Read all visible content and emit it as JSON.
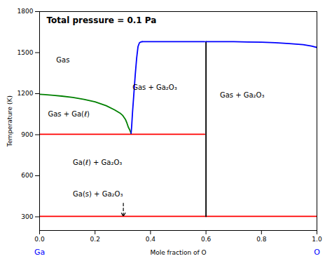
{
  "chart_data": {
    "type": "line",
    "title": "Total pressure = 0.1 Pa",
    "xlabel": "Mole fraction of O",
    "ylabel": "Temperature (K)",
    "xlim": [
      0.0,
      1.0
    ],
    "ylim": [
      200,
      1800
    ],
    "xticks": [
      {
        "value": 0.0,
        "label": "0.0"
      },
      0.2,
      0.4,
      0.6,
      0.8,
      {
        "value": 1.0,
        "label": "1.0"
      }
    ],
    "yticks": [
      300,
      600,
      900,
      1200,
      1500,
      1800
    ],
    "grid": false,
    "series": [
      {
        "type": "line",
        "color": "red",
        "x": [
          0.0,
          1.0
        ],
        "y": [
          303,
          303
        ]
      },
      {
        "type": "line",
        "color": "red",
        "x": [
          0.0,
          0.595
        ],
        "y": [
          903,
          903
        ]
      },
      {
        "type": "line",
        "color": "black",
        "x": [
          0.6,
          0.6
        ],
        "y": [
          303,
          1580
        ]
      },
      {
        "type": "arrow",
        "color": "black",
        "line_style": "dashed",
        "x": [
          0.302,
          0.302
        ],
        "y": [
          400,
          303
        ]
      },
      {
        "type": "line",
        "color": "green",
        "x": [
          0.0,
          0.02,
          0.05,
          0.08,
          0.12,
          0.16,
          0.2,
          0.24,
          0.27,
          0.29,
          0.3,
          0.31,
          0.315,
          0.32,
          0.325,
          0.328,
          0.33
        ],
        "y": [
          1195,
          1193,
          1188,
          1182,
          1172,
          1158,
          1140,
          1112,
          1082,
          1058,
          1040,
          1010,
          985,
          955,
          935,
          920,
          910
        ]
      },
      {
        "type": "line",
        "color": "blue",
        "x": [
          0.33,
          0.332,
          0.335,
          0.34,
          0.345,
          0.35,
          0.355,
          0.36,
          0.365,
          0.37
        ],
        "y": [
          910,
          960,
          1060,
          1200,
          1340,
          1460,
          1545,
          1572,
          1578,
          1580
        ]
      },
      {
        "type": "line",
        "color": "blue",
        "x": [
          0.37,
          0.5,
          0.595
        ],
        "y": [
          1580,
          1580,
          1580
        ]
      },
      {
        "type": "line",
        "color": "blue",
        "x": [
          0.6,
          0.65,
          0.7,
          0.75,
          0.8,
          0.85,
          0.9,
          0.95,
          0.98,
          1.0
        ],
        "y": [
          1580,
          1580,
          1580,
          1578,
          1576,
          1572,
          1566,
          1558,
          1548,
          1538
        ]
      }
    ],
    "annotations": [
      {
        "text": "Gas",
        "x": 0.06,
        "y": 1430
      },
      {
        "text": "Gas + Ga(ℓ)",
        "x": 0.03,
        "y": 1035
      },
      {
        "text": "Gas + Ga₂O₃",
        "x": 0.335,
        "y": 1230
      },
      {
        "text": "Gas + Ga₂O₃",
        "x": 0.65,
        "y": 1170
      },
      {
        "text": "Ga(ℓ) + Ga₂O₃",
        "x": 0.12,
        "y": 680
      },
      {
        "text": "Ga(s) + Ga₂O₃",
        "x": 0.12,
        "y": 450
      }
    ],
    "x_end_labels": [
      {
        "text": "Ga",
        "color": "#0000ff"
      },
      {
        "text": "O",
        "color": "#0000ff"
      }
    ]
  }
}
